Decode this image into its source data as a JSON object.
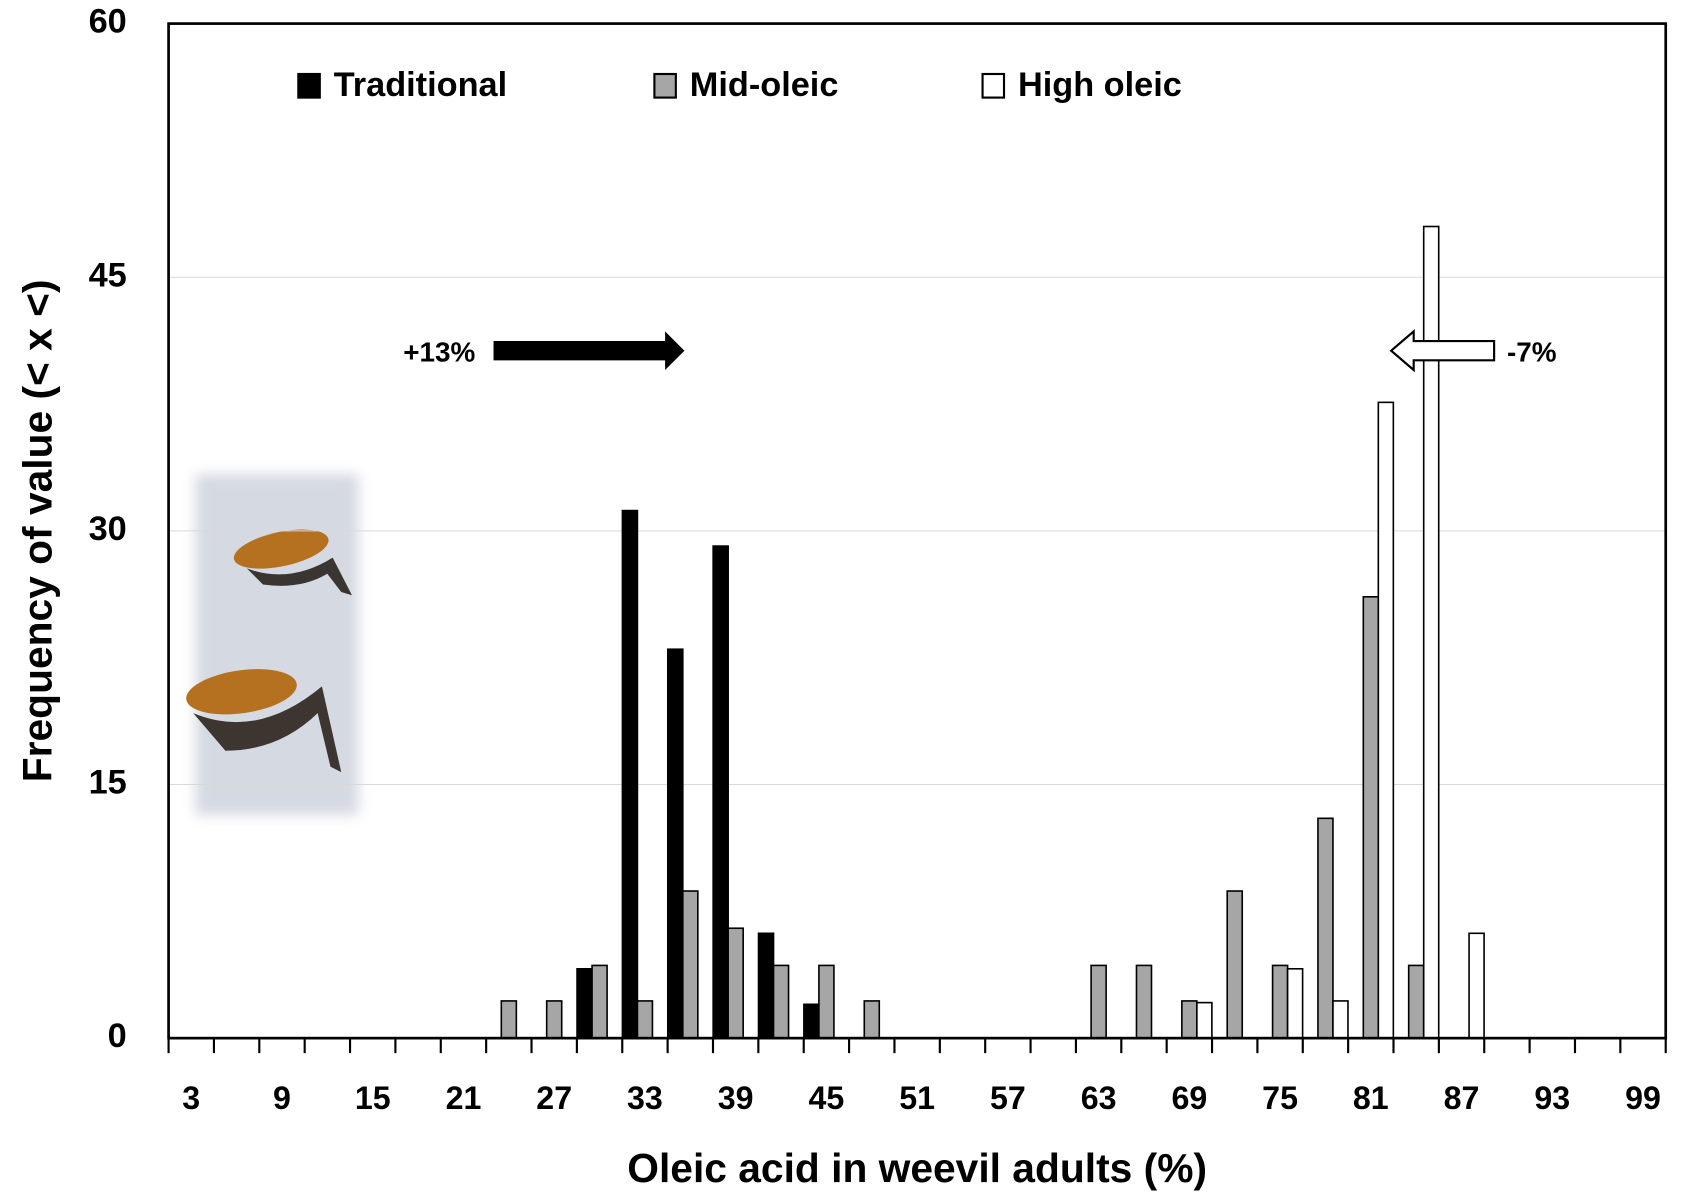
{
  "chart_data": {
    "type": "bar",
    "x_label": "Oleic acid in weevil adults (%)",
    "y_label": "Frequency of value (< x <)",
    "categories": [
      "3",
      null,
      "9",
      null,
      "15",
      null,
      "21",
      null,
      "27",
      null,
      "33",
      null,
      "39",
      null,
      "45",
      null,
      "51",
      null,
      "57",
      null,
      "63",
      null,
      "69",
      null,
      "75",
      null,
      "81",
      null,
      "87",
      null,
      "93",
      null,
      "99"
    ],
    "series": [
      {
        "name": "Traditional",
        "color": "#000000",
        "values": [
          0,
          0,
          0,
          0,
          0,
          0,
          0,
          0,
          0,
          4.1,
          31.2,
          23,
          29.1,
          6.2,
          2,
          0,
          0,
          0,
          0,
          0,
          0,
          0,
          0,
          0,
          0,
          0,
          0,
          0,
          0,
          0,
          0,
          0,
          0
        ]
      },
      {
        "name": "Mid-oleic",
        "color": "#a6a6a6",
        "values": [
          0,
          0,
          0,
          0,
          0,
          0,
          0,
          2.2,
          2.2,
          4.3,
          2.2,
          8.7,
          6.5,
          4.3,
          4.3,
          2.2,
          0,
          0,
          0,
          0,
          4.3,
          4.3,
          2.2,
          8.7,
          4.3,
          13,
          26.1,
          4.3,
          0,
          0,
          0,
          0,
          0
        ]
      },
      {
        "name": "High oleic",
        "color": "#ffffff",
        "values": [
          0,
          0,
          0,
          0,
          0,
          0,
          0,
          0,
          0,
          0,
          0,
          0,
          0,
          0,
          0,
          0,
          0,
          0,
          0,
          0,
          0,
          0,
          2.1,
          0,
          4.1,
          2.2,
          37.6,
          48,
          6.2,
          0,
          0,
          0,
          0
        ]
      }
    ],
    "ylim": [
      0,
      60
    ],
    "yticks": [
      0,
      15,
      30,
      45,
      60
    ],
    "grid": true,
    "annotations": [
      "+13%",
      "-7%"
    ]
  }
}
